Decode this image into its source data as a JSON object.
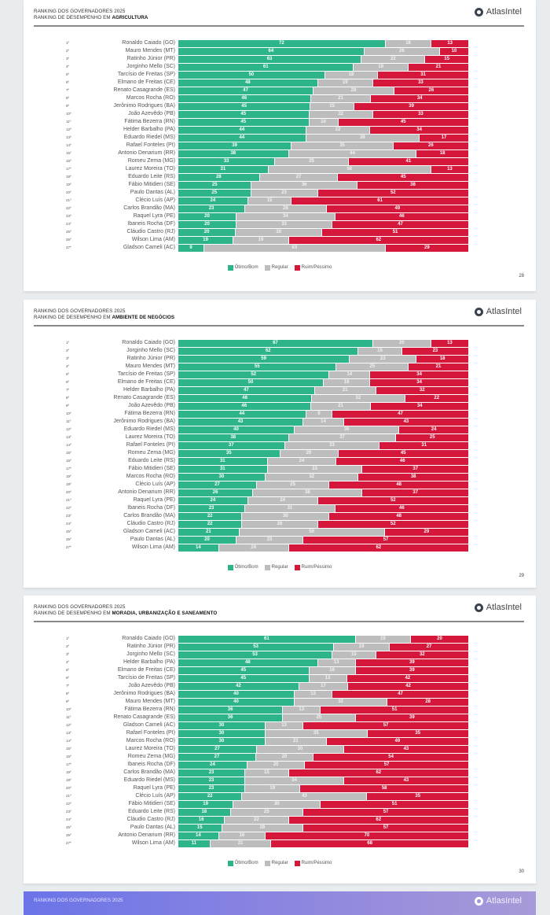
{
  "colors": {
    "good": "#2db48b",
    "regular": "#bdbdbd",
    "bad": "#d6173c"
  },
  "brand": "AtlasIntel",
  "legend": [
    "Ótimo/Bom",
    "Regular",
    "Ruim/Péssimo"
  ],
  "chart_data": [
    {
      "type": "bar",
      "stacked": true,
      "orientation": "horizontal",
      "title_line1": "RANKING DOS GOVERNADORES 2025",
      "title_prefix": "RANKING DE DESEMPENHO EM ",
      "title_topic": "AGRICULTURA",
      "page": "28",
      "ranks": [
        "1º",
        "2º",
        "3º",
        "4º",
        "5º",
        "6º",
        "7º",
        "8º",
        "9º",
        "10º",
        "11º",
        "12º",
        "13º",
        "14º",
        "15º",
        "16º",
        "17º",
        "18º",
        "19º",
        "20º",
        "21º",
        "22º",
        "23º",
        "24º",
        "25º",
        "26º",
        "27º"
      ],
      "categories": [
        "Ronaldo Caiado (GO)",
        "Mauro Mendes (MT)",
        "Ratinho Júnior (PR)",
        "Jorginho Mello (SC)",
        "Tarcísio de Freitas (SP)",
        "Elmano de Freitas (CE)",
        "Renato Casagrande (ES)",
        "Marcos Rocha (RO)",
        "Jerônimo Rodrigues (BA)",
        "João Azevêdo (PB)",
        "Fátima Bezerra (RN)",
        "Helder Barbalho (PA)",
        "Eduardo Riedel (MS)",
        "Rafael Fonteles (PI)",
        "Antonio Denarium (RR)",
        "Romeu Zema (MG)",
        "Laurez Moreira (TO)",
        "Eduardo Leite (RS)",
        "Fábio Mitidieri (SE)",
        "Paulo Dantas (AL)",
        "Clécio Luís (AP)",
        "Carlos Brandão (MA)",
        "Raquel Lyra (PE)",
        "Ibaneis Rocha (DF)",
        "Cláudio Castro (RJ)",
        "Wilson Lima (AM)",
        "Gladson Cameli (AC)"
      ],
      "series": [
        {
          "name": "Ótimo/Bom",
          "values": [
            72,
            64,
            63,
            61,
            50,
            48,
            47,
            46,
            45,
            45,
            45,
            44,
            44,
            39,
            38,
            33,
            31,
            28,
            25,
            25,
            24,
            23,
            20,
            20,
            20,
            19,
            9
          ]
        },
        {
          "name": "Regular",
          "values": [
            16,
            26,
            22,
            19,
            18,
            19,
            28,
            21,
            15,
            22,
            10,
            22,
            39,
            35,
            44,
            25,
            56,
            27,
            36,
            23,
            15,
            28,
            34,
            33,
            30,
            19,
            63
          ]
        },
        {
          "name": "Ruim/Péssimo",
          "values": [
            13,
            10,
            15,
            21,
            31,
            33,
            26,
            34,
            39,
            33,
            45,
            34,
            17,
            26,
            18,
            41,
            13,
            45,
            38,
            52,
            61,
            49,
            46,
            47,
            51,
            62,
            29
          ]
        }
      ]
    },
    {
      "type": "bar",
      "stacked": true,
      "orientation": "horizontal",
      "title_line1": "RANKING DOS GOVERNADORES 2025",
      "title_prefix": "RANKING DE DESEMPENHO EM ",
      "title_topic": "AMBIENTE DE NEGÓCIOS",
      "page": "29",
      "ranks": [
        "1º",
        "2º",
        "3º",
        "4º",
        "5º",
        "6º",
        "7º",
        "8º",
        "9º",
        "10º",
        "11º",
        "12º",
        "13º",
        "14º",
        "15º",
        "16º",
        "17º",
        "18º",
        "19º",
        "20º",
        "21º",
        "22º",
        "23º",
        "24º",
        "25º",
        "26º",
        "27º"
      ],
      "categories": [
        "Ronaldo Caiado (GO)",
        "Jorginho Mello (SC)",
        "Ratinho Júnior (PR)",
        "Mauro Mendes (MT)",
        "Tarcísio de Freitas (SP)",
        "Elmano de Freitas (CE)",
        "Helder Barbalho (PA)",
        "Renato Casagrande (ES)",
        "João Azevêdo (PB)",
        "Fátima Bezerra (RN)",
        "Jerônimo Rodrigues (BA)",
        "Eduardo Riedel (MS)",
        "Laurez Moreira (TO)",
        "Rafael Fonteles (PI)",
        "Romeu Zema (MG)",
        "Eduardo Leite (RS)",
        "Fábio Mitidieri (SE)",
        "Marcos Rocha (RO)",
        "Clécio Luís (AP)",
        "Antonio Denarium (RR)",
        "Raquel Lyra (PE)",
        "Ibaneis Rocha (DF)",
        "Carlos Brandão (MA)",
        "Cláudio Castro (RJ)",
        "Gladson Cameli (AC)",
        "Paulo Dantas (AL)",
        "Wilson Lima (AM)"
      ],
      "series": [
        {
          "name": "Ótimo/Bom",
          "values": [
            67,
            62,
            59,
            55,
            52,
            50,
            47,
            46,
            46,
            44,
            43,
            40,
            38,
            37,
            35,
            31,
            31,
            30,
            27,
            26,
            24,
            23,
            22,
            22,
            21,
            20,
            14
          ]
        },
        {
          "name": "Regular",
          "values": [
            20,
            15,
            23,
            25,
            14,
            16,
            21,
            32,
            21,
            9,
            14,
            36,
            37,
            33,
            20,
            24,
            33,
            32,
            25,
            38,
            24,
            31,
            30,
            26,
            50,
            23,
            24
          ]
        },
        {
          "name": "Ruim/Péssimo",
          "values": [
            13,
            23,
            18,
            21,
            34,
            34,
            32,
            22,
            34,
            47,
            43,
            24,
            25,
            31,
            45,
            46,
            37,
            38,
            48,
            37,
            52,
            46,
            48,
            52,
            29,
            57,
            62
          ]
        }
      ]
    },
    {
      "type": "bar",
      "stacked": true,
      "orientation": "horizontal",
      "title_line1": "RANKING DOS GOVERNADORES 2025",
      "title_prefix": "RANKING DE DESEMPENHO EM ",
      "title_topic": "MORADIA, URBANIZAÇÃO E SANEAMENTO",
      "page": "30",
      "ranks": [
        "1º",
        "2º",
        "3º",
        "4º",
        "5º",
        "6º",
        "7º",
        "8º",
        "9º",
        "10º",
        "11º",
        "12º",
        "13º",
        "14º",
        "15º",
        "16º",
        "17º",
        "18º",
        "19º",
        "20º",
        "21º",
        "22º",
        "23º",
        "24º",
        "25º",
        "26º",
        "27º"
      ],
      "categories": [
        "Ronaldo Caiado (GO)",
        "Ratinho Júnior (PR)",
        "Jorginho Mello (SC)",
        "Helder Barbalho (PA)",
        "Elmano de Freitas (CE)",
        "Tarcísio de Freitas (SP)",
        "João Azevêdo (PB)",
        "Jerônimo Rodrigues (BA)",
        "Mauro Mendes (MT)",
        "Fátima Bezerra (RN)",
        "Renato Casagrande (ES)",
        "Gladson Cameli (AC)",
        "Rafael Fonteles (PI)",
        "Marcos Rocha (RO)",
        "Laurez Moreira (TO)",
        "Romeu Zema (MG)",
        "Ibaneis Rocha (DF)",
        "Carlos Brandão (MA)",
        "Eduardo Riedel (MS)",
        "Raquel Lyra (PE)",
        "Clécio Luís (AP)",
        "Fábio Mitidieri (SE)",
        "Eduardo Leite (RS)",
        "Cláudio Castro (RJ)",
        "Paulo Dantas (AL)",
        "Antonio Denarium (RR)",
        "Wilson Lima (AM)"
      ],
      "series": [
        {
          "name": "Ótimo/Bom",
          "values": [
            61,
            53,
            53,
            48,
            45,
            45,
            42,
            40,
            40,
            36,
            36,
            30,
            30,
            30,
            27,
            27,
            24,
            23,
            23,
            23,
            22,
            19,
            18,
            16,
            15,
            14,
            11
          ]
        },
        {
          "name": "Regular",
          "values": [
            19,
            19,
            15,
            13,
            16,
            13,
            17,
            13,
            32,
            13,
            25,
            13,
            35,
            21,
            30,
            20,
            20,
            15,
            34,
            19,
            43,
            30,
            25,
            22,
            28,
            16,
            21
          ]
        },
        {
          "name": "Ruim/Péssimo",
          "values": [
            20,
            27,
            32,
            39,
            39,
            42,
            42,
            47,
            28,
            51,
            39,
            57,
            35,
            49,
            43,
            54,
            57,
            62,
            43,
            58,
            35,
            51,
            57,
            62,
            57,
            70,
            68
          ]
        }
      ]
    }
  ],
  "next_card": {
    "title_line1": "RANKING DOS GOVERNADORES 2025"
  }
}
